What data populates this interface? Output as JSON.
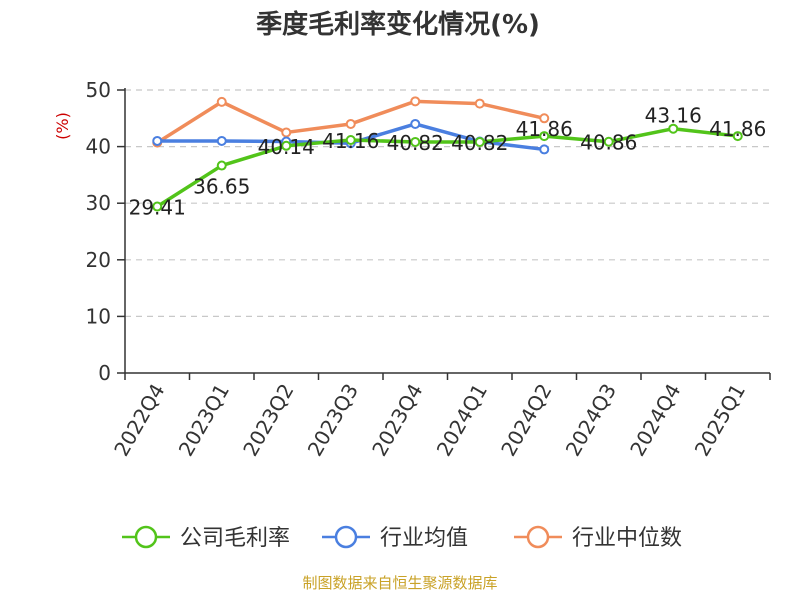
{
  "chart_data": {
    "type": "line",
    "title": "季度毛利率变化情况(%)",
    "ylabel": "(%)",
    "xlabel": "",
    "ylim": [
      0,
      50
    ],
    "yticks": [
      0,
      10,
      20,
      30,
      40,
      50
    ],
    "grid": true,
    "legend_position": "bottom",
    "categories": [
      "2022Q4",
      "2023Q1",
      "2023Q2",
      "2023Q3",
      "2023Q4",
      "2024Q1",
      "2024Q2",
      "2024Q3",
      "2024Q4",
      "2025Q1"
    ],
    "series": [
      {
        "name": "公司毛利率",
        "color": "#52c41a",
        "values": [
          29.41,
          36.65,
          40.14,
          41.16,
          40.82,
          40.82,
          41.86,
          40.86,
          43.16,
          41.86
        ],
        "labels": [
          "29.41",
          "36.65",
          "40.14",
          "41.16",
          "40.82",
          "40.82",
          "41.86",
          "40.86",
          "43.16",
          "41.86"
        ]
      },
      {
        "name": "行业均值",
        "color": "#4a7fe0",
        "values": [
          41.0,
          41.0,
          40.9,
          40.6,
          44.0,
          40.9,
          39.5,
          null,
          null,
          null
        ]
      },
      {
        "name": "行业中位数",
        "color": "#f08c5a",
        "values": [
          40.7,
          47.9,
          42.5,
          44.0,
          48.0,
          47.6,
          45.0,
          null,
          null,
          null
        ]
      }
    ]
  },
  "source": "制图数据来自恒生聚源数据库"
}
